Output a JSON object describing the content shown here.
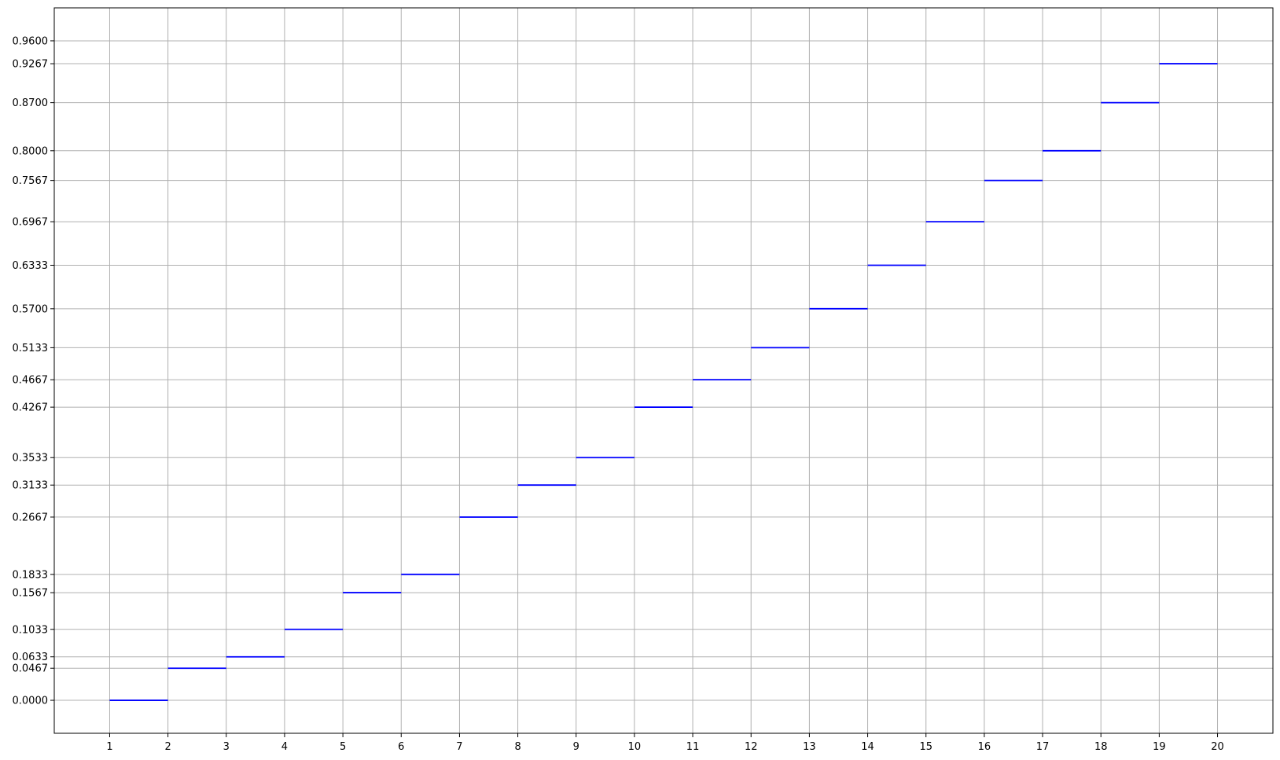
{
  "chart_data": {
    "type": "line",
    "style": "horizontal step segments",
    "title": "",
    "xlabel": "",
    "ylabel": "",
    "xlim": [
      0.05,
      20.95
    ],
    "ylim": [
      -0.048,
      1.008
    ],
    "grid": true,
    "legend": "none",
    "colors": {
      "segment": "#0000ff",
      "grid": "#b0b0b0",
      "frame": "#000000"
    },
    "x_ticks": [
      1,
      2,
      3,
      4,
      5,
      6,
      7,
      8,
      9,
      10,
      11,
      12,
      13,
      14,
      15,
      16,
      17,
      18,
      19,
      20
    ],
    "x_tick_labels": [
      "1",
      "2",
      "3",
      "4",
      "5",
      "6",
      "7",
      "8",
      "9",
      "10",
      "11",
      "12",
      "13",
      "14",
      "15",
      "16",
      "17",
      "18",
      "19",
      "20"
    ],
    "y_ticks": [
      0.0,
      0.0467,
      0.0633,
      0.1033,
      0.1567,
      0.1833,
      0.2667,
      0.3133,
      0.3533,
      0.4267,
      0.4667,
      0.5133,
      0.57,
      0.6333,
      0.6967,
      0.7567,
      0.8,
      0.87,
      0.9267,
      0.96
    ],
    "y_tick_labels": [
      "0.0000",
      "0.0467",
      "0.0633",
      "0.1033",
      "0.1567",
      "0.1833",
      "0.2667",
      "0.3133",
      "0.3533",
      "0.4267",
      "0.4667",
      "0.5133",
      "0.5700",
      "0.6333",
      "0.6967",
      "0.7567",
      "0.8000",
      "0.8700",
      "0.9267",
      "0.9600"
    ],
    "segments": [
      {
        "x_start": 1,
        "x_end": 2,
        "y": 0.0
      },
      {
        "x_start": 2,
        "x_end": 3,
        "y": 0.0467
      },
      {
        "x_start": 3,
        "x_end": 4,
        "y": 0.0633
      },
      {
        "x_start": 4,
        "x_end": 5,
        "y": 0.1033
      },
      {
        "x_start": 5,
        "x_end": 6,
        "y": 0.1567
      },
      {
        "x_start": 6,
        "x_end": 7,
        "y": 0.1833
      },
      {
        "x_start": 7,
        "x_end": 8,
        "y": 0.2667
      },
      {
        "x_start": 8,
        "x_end": 9,
        "y": 0.3133
      },
      {
        "x_start": 9,
        "x_end": 10,
        "y": 0.3533
      },
      {
        "x_start": 10,
        "x_end": 11,
        "y": 0.4267
      },
      {
        "x_start": 11,
        "x_end": 12,
        "y": 0.4667
      },
      {
        "x_start": 12,
        "x_end": 13,
        "y": 0.5133
      },
      {
        "x_start": 13,
        "x_end": 14,
        "y": 0.57
      },
      {
        "x_start": 14,
        "x_end": 15,
        "y": 0.6333
      },
      {
        "x_start": 15,
        "x_end": 16,
        "y": 0.6967
      },
      {
        "x_start": 16,
        "x_end": 17,
        "y": 0.7567
      },
      {
        "x_start": 17,
        "x_end": 18,
        "y": 0.8
      },
      {
        "x_start": 18,
        "x_end": 19,
        "y": 0.87
      },
      {
        "x_start": 19,
        "x_end": 20,
        "y": 0.9267
      }
    ]
  }
}
